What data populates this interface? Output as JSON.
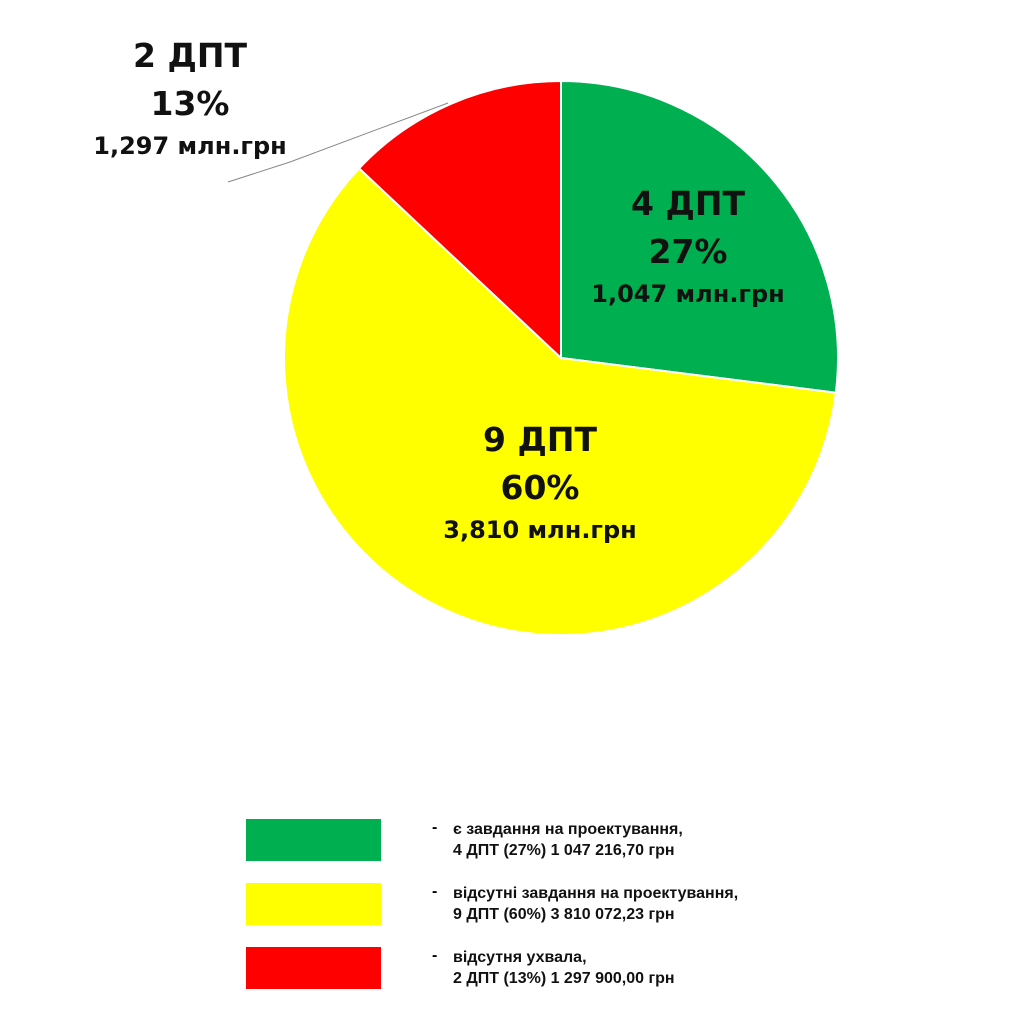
{
  "chart_data": {
    "type": "pie",
    "start_angle": "top, clockwise",
    "slices": [
      {
        "count_label": "4 ДПТ",
        "percent": 27,
        "percent_label": "27%",
        "amount_label": "1,047 млн.грн",
        "color": "#00b050"
      },
      {
        "count_label": "9 ДПТ",
        "percent": 60,
        "percent_label": "60%",
        "amount_label": "3,810 млн.грн",
        "color": "#ffff00"
      },
      {
        "count_label": "2 ДПТ",
        "percent": 13,
        "percent_label": "13%",
        "amount_label": "1,297 млн.грн",
        "color": "#ff0000"
      }
    ],
    "legend": {
      "placement": "bottom",
      "entries": [
        {
          "dash": "-",
          "line1": "є завдання на проектування,",
          "line2": "4 ДПТ (27%) 1 047 216,70 грн",
          "color": "#00b050"
        },
        {
          "dash": "-",
          "line1": "відсутні завдання на проектування,",
          "line2": "9 ДПТ (60%) 3 810 072,23 грн",
          "color": "#ffff00"
        },
        {
          "dash": "-",
          "line1": "відсутня ухвала,",
          "line2": "2 ДПТ (13%) 1 297 900,00 грн",
          "color": "#ff0000"
        }
      ]
    }
  }
}
